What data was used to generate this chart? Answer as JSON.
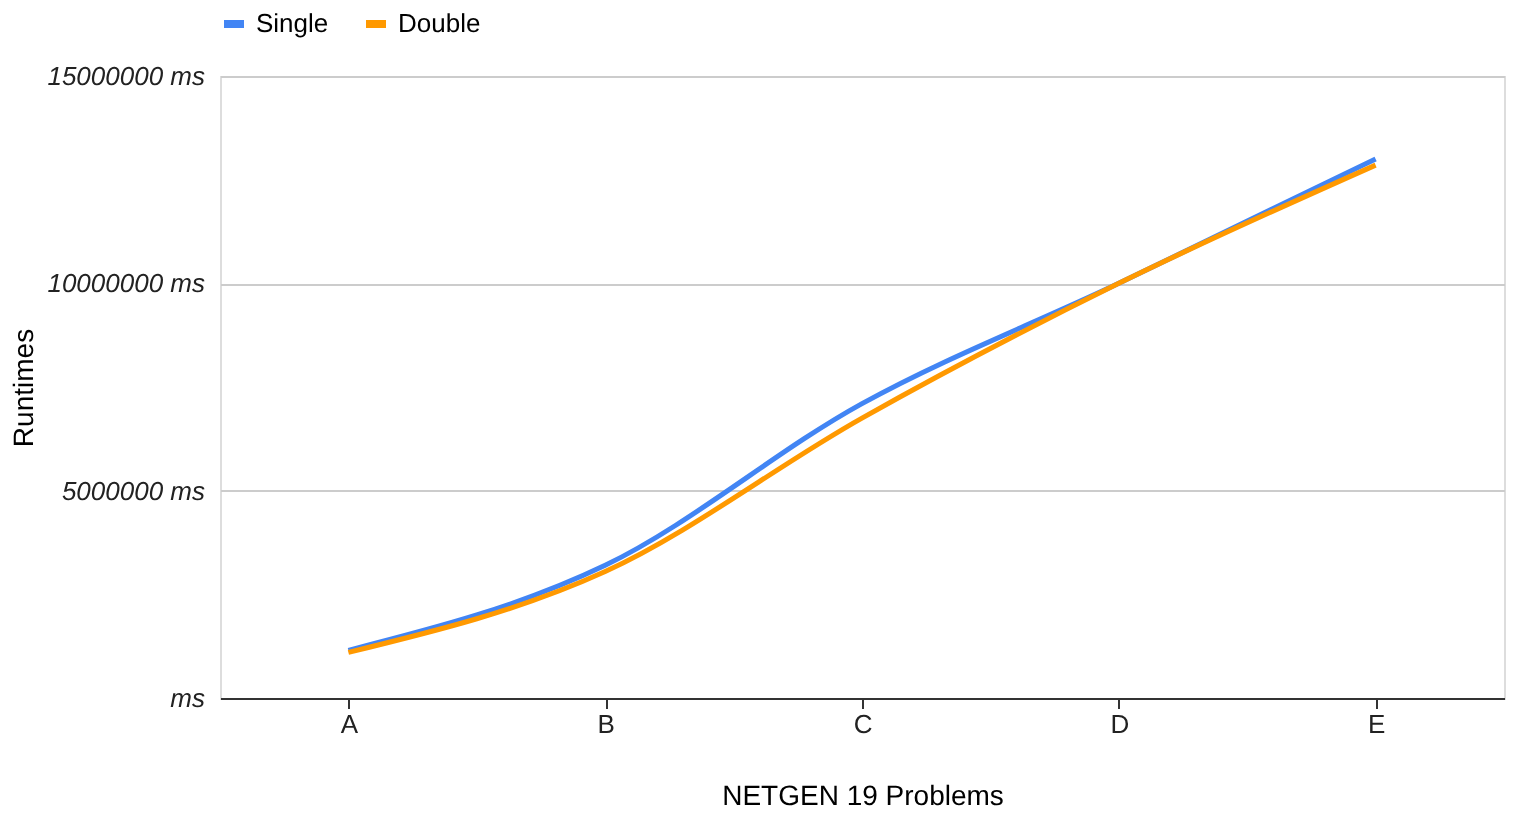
{
  "chart_data": {
    "type": "line",
    "xlabel": "NETGEN 19 Problems",
    "ylabel": "Runtimes",
    "categories": [
      "A",
      "B",
      "C",
      "D",
      "E"
    ],
    "series": [
      {
        "name": "Single",
        "color": "#4285f4",
        "values": [
          1150000,
          3200000,
          7100000,
          10000000,
          13000000
        ]
      },
      {
        "name": "Double",
        "color": "#ff9900",
        "values": [
          1100000,
          3050000,
          6750000,
          10000000,
          12850000
        ]
      }
    ],
    "ylim": [
      0,
      15000000
    ],
    "yticks": [
      {
        "value": 0,
        "label": "ms"
      },
      {
        "value": 5000000,
        "label": "5000000 ms"
      },
      {
        "value": 10000000,
        "label": "10000000 ms"
      },
      {
        "value": 15000000,
        "label": "15000000 ms"
      }
    ],
    "grid": "y",
    "legend": "top",
    "marker": "none",
    "line_style": "solid"
  }
}
